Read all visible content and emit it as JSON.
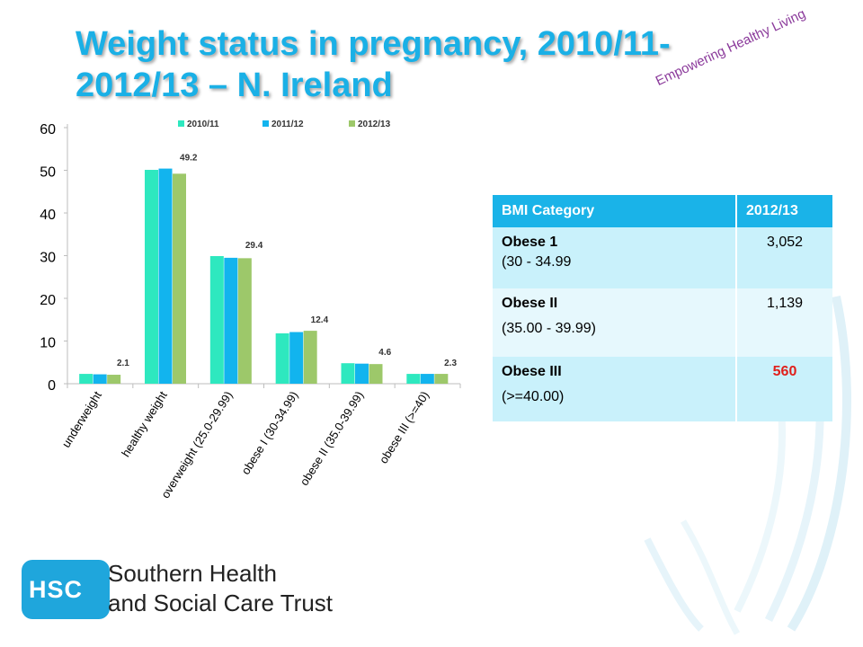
{
  "slide": {
    "title": "Weight status in pregnancy, 2010/11-\n2012/13 – N. Ireland",
    "tagline": "Empowering Healthy Living"
  },
  "chart_data": {
    "type": "bar",
    "categories": [
      "underweight",
      "healthy weight",
      "overweight (25.0-29.99)",
      "obese I (30-34.99)",
      "obese II (35.0-39.99)",
      "obese III (>=40)"
    ],
    "series": [
      {
        "name": "2010/11",
        "values": [
          2.3,
          50.1,
          29.9,
          11.8,
          4.8,
          2.3
        ]
      },
      {
        "name": "2011/12",
        "values": [
          2.2,
          50.4,
          29.5,
          12.1,
          4.7,
          2.3
        ]
      },
      {
        "name": "2012/13",
        "values": [
          2.1,
          49.2,
          29.4,
          12.4,
          4.6,
          2.3
        ]
      }
    ],
    "data_labels": [
      "2.1",
      "49.2",
      "29.4",
      "12.4",
      "4.6",
      "2.3"
    ],
    "yticks": [
      "0",
      "10",
      "20",
      "30",
      "40",
      "50",
      "60"
    ],
    "ylim": [
      0,
      60
    ],
    "title": "",
    "xlabel": "",
    "ylabel": "",
    "legend_position": "top",
    "grid": false,
    "colors": [
      "#2ee8bf",
      "#12b4ee",
      "#9dc86a"
    ]
  },
  "table": {
    "headers": [
      "BMI Category",
      "2012/13"
    ],
    "rows": [
      {
        "category": "Obese 1",
        "range": "(30 - 34.99",
        "value": "3,052"
      },
      {
        "category": "Obese II",
        "range": "(35.00 - 39.99)",
        "value": "1,139"
      },
      {
        "category": "Obese III",
        "range": "(>=40.00)",
        "value": "560"
      }
    ],
    "highlight_color": "#e0201b"
  },
  "logo": {
    "abbr": "HSC",
    "line1": "Southern Health",
    "line2": "and Social Care Trust"
  },
  "colors": {
    "title": "#1ab0e6",
    "tagline": "#8b3a9b",
    "table_header": "#1ab3e8",
    "table_row": "#c9f1fb",
    "table_row_alt": "#e6f8fd"
  }
}
